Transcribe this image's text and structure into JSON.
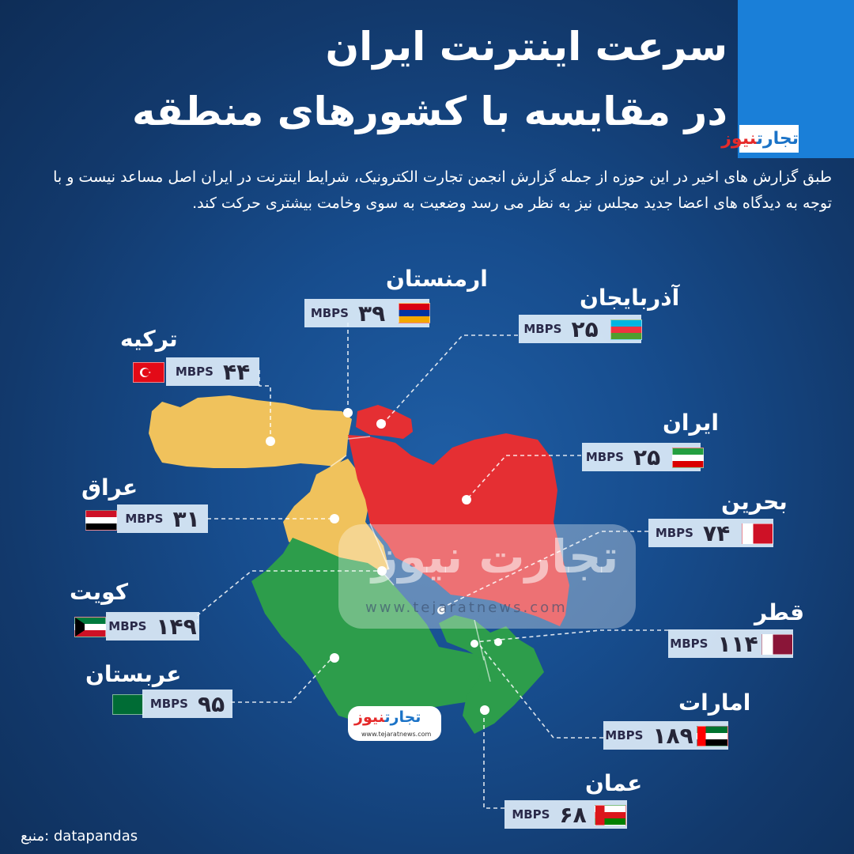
{
  "title": {
    "line1": "سرعت اینترنت ایران",
    "line2": "در مقایسه با کشورهای منطقه"
  },
  "brand": {
    "logo_prefix": "تجارت",
    "logo_suffix": "نیوز",
    "watermark_text": "تجارت نیوز",
    "watermark_url": "www.tejaratnews.com",
    "badge_url": "www.tejaratnews.com"
  },
  "intro": "طبق گزارش های اخیر در این حوزه از جمله گزارش انجمن تجارت الکترونیک، شرایط اینترنت در ایران اصل مساعد نیست و با توجه به دیدگاه های اعضا جدید مجلس نیز به نظر می رسد وضعیت به سوی وخامت بیشتری حرکت کند.",
  "unit": "MBPS",
  "countries": {
    "armenia": {
      "name": "ارمنستان",
      "speed": "۳۹"
    },
    "azerbaijan": {
      "name": "آذربایجان",
      "speed": "۲۵"
    },
    "turkey": {
      "name": "ترکیه",
      "speed": "۴۴"
    },
    "iran": {
      "name": "ایران",
      "speed": "۲۵"
    },
    "iraq": {
      "name": "عراق",
      "speed": "۳۱"
    },
    "bahrain": {
      "name": "بحرین",
      "speed": "۷۴"
    },
    "kuwait": {
      "name": "کویت",
      "speed": "۱۴۹"
    },
    "qatar": {
      "name": "قطر",
      "speed": "۱۱۴"
    },
    "saudi": {
      "name": "عربستان",
      "speed": "۹۵"
    },
    "uae": {
      "name": "امارات",
      "speed": "۱۸۹"
    },
    "oman": {
      "name": "عمان",
      "speed": "۶۸"
    }
  },
  "map_colors": {
    "turkey_iraq": "#f0c25c",
    "iran_armenia_azerbaijan": "#e52f33",
    "arabian_peninsula": "#2d9d4b",
    "background": "#174d8e"
  },
  "source": "منبع: datapandas"
}
